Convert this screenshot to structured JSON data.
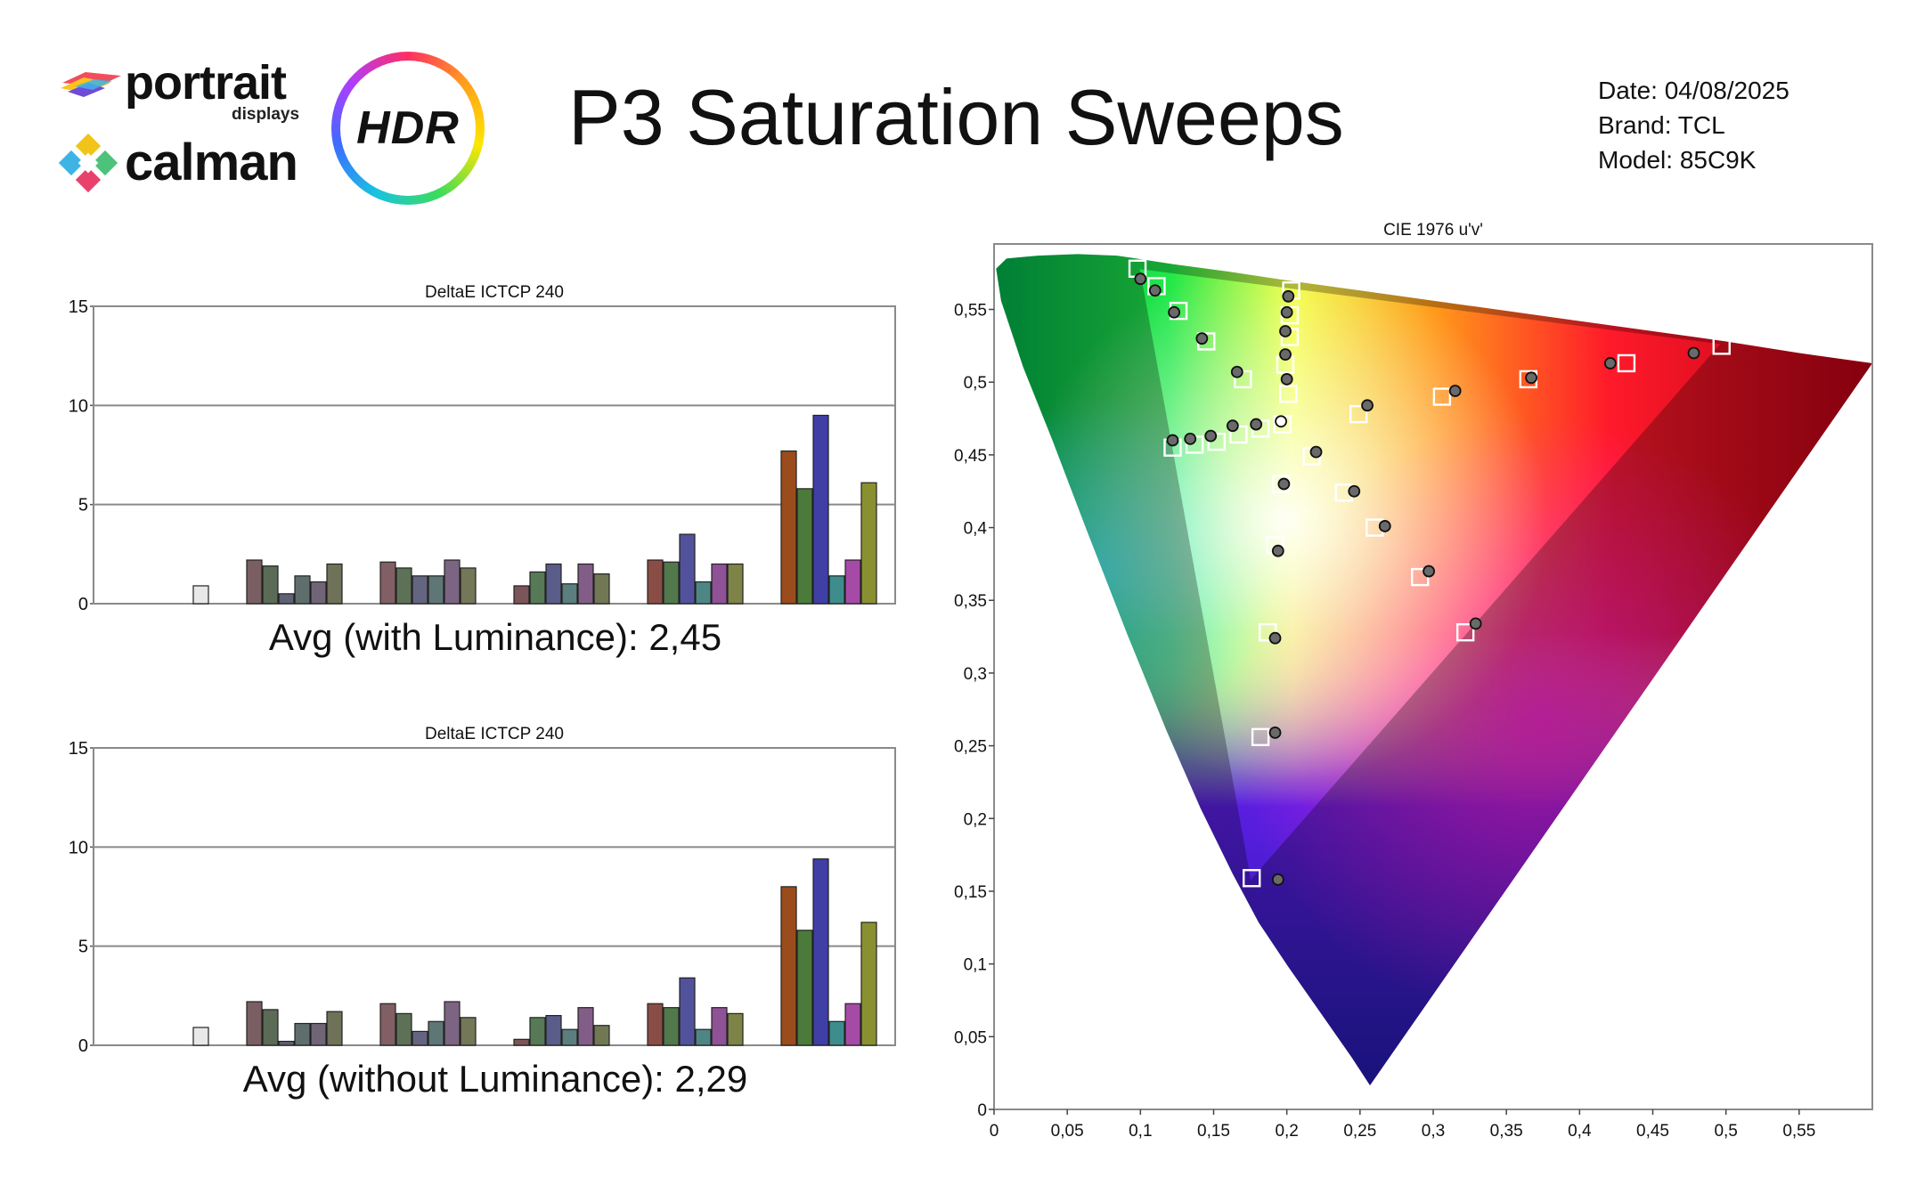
{
  "header": {
    "brand_portrait": "portrait",
    "brand_displays": "displays",
    "brand_calman": "calman",
    "badge_hdr": "HDR",
    "title": "P3 Saturation Sweeps",
    "date": "Date: 04/08/2025",
    "brand": "Brand: TCL",
    "model": "Model: 85C9K"
  },
  "icons": {
    "portrait_logo": "portrait-logo-icon",
    "calman_logo": "calman-logo-icon",
    "hdr_badge": "hdr-ring-icon"
  },
  "chart_data": [
    {
      "type": "bar",
      "title": "DeltaE ICTCP 240",
      "ylim": [
        0,
        15
      ],
      "yticks": [
        "0",
        "5",
        "10",
        "15"
      ],
      "groups": [
        {
          "colors": [
            "#c8c8c8",
            "#c8c8c8",
            "#c8c8c8",
            "#c8c8c8",
            "#c8c8c8",
            "#e8e8e8"
          ],
          "values": [
            0,
            0,
            0,
            0,
            0,
            0.9
          ]
        },
        {
          "colors": [
            "#7a5f62",
            "#5b6b56",
            "#5e6174",
            "#5f6d6d",
            "#706577",
            "#6f7259"
          ],
          "values": [
            2.2,
            1.9,
            0.5,
            1.4,
            1.1,
            2.0
          ]
        },
        {
          "colors": [
            "#815f64",
            "#5d7157",
            "#646580",
            "#5e7676",
            "#7b6582",
            "#747758"
          ],
          "values": [
            2.1,
            1.8,
            1.4,
            1.4,
            2.2,
            1.8
          ]
        },
        {
          "colors": [
            "#7b5558",
            "#577955",
            "#5a5d89",
            "#5b7e7e",
            "#825d87",
            "#737854"
          ],
          "values": [
            0.9,
            1.6,
            2.0,
            1.0,
            2.0,
            1.5
          ]
        },
        {
          "colors": [
            "#8a4d45",
            "#51794c",
            "#52529c",
            "#4e8686",
            "#8f5296",
            "#7e8347"
          ],
          "values": [
            2.2,
            2.1,
            3.5,
            1.1,
            2.0,
            2.0
          ]
        },
        {
          "colors": [
            "#9a4c1c",
            "#4b7a3a",
            "#3f3fa6",
            "#3e8d8d",
            "#a64aa8",
            "#8a9030"
          ],
          "values": [
            7.7,
            5.8,
            9.5,
            1.4,
            2.2,
            6.1
          ]
        }
      ],
      "avg_label": "Avg (with Luminance): 2,45"
    },
    {
      "type": "bar",
      "title": "DeltaE ICTCP 240",
      "ylim": [
        0,
        15
      ],
      "yticks": [
        "0",
        "5",
        "10",
        "15"
      ],
      "groups": [
        {
          "colors": [
            "#c8c8c8",
            "#c8c8c8",
            "#c8c8c8",
            "#c8c8c8",
            "#c8c8c8",
            "#e8e8e8"
          ],
          "values": [
            0,
            0,
            0,
            0,
            0,
            0.9
          ]
        },
        {
          "colors": [
            "#7a5f62",
            "#5b6b56",
            "#5e6174",
            "#5f6d6d",
            "#706577",
            "#6f7259"
          ],
          "values": [
            2.2,
            1.8,
            0.2,
            1.1,
            1.1,
            1.7
          ]
        },
        {
          "colors": [
            "#815f64",
            "#5d7157",
            "#646580",
            "#5e7676",
            "#7b6582",
            "#747758"
          ],
          "values": [
            2.1,
            1.6,
            0.7,
            1.2,
            2.2,
            1.4
          ]
        },
        {
          "colors": [
            "#7b5558",
            "#577955",
            "#5a5d89",
            "#5b7e7e",
            "#825d87",
            "#737854"
          ],
          "values": [
            0.3,
            1.4,
            1.5,
            0.8,
            1.9,
            1.0
          ]
        },
        {
          "colors": [
            "#8a4d45",
            "#51794c",
            "#52529c",
            "#4e8686",
            "#8f5296",
            "#7e8347"
          ],
          "values": [
            2.1,
            1.9,
            3.4,
            0.8,
            1.9,
            1.6
          ]
        },
        {
          "colors": [
            "#9a4c1c",
            "#4b7a3a",
            "#3f3fa6",
            "#3e8d8d",
            "#a64aa8",
            "#8a9030"
          ],
          "values": [
            8.0,
            5.8,
            9.4,
            1.2,
            2.1,
            6.2
          ]
        }
      ],
      "avg_label": "Avg (without Luminance): 2,29"
    },
    {
      "type": "scatter",
      "title": "CIE 1976 u'v'",
      "xlim": [
        0,
        0.6
      ],
      "ylim": [
        0,
        0.595
      ],
      "xticks": [
        0,
        0.05,
        0.1,
        0.15,
        0.2,
        0.25,
        0.3,
        0.35,
        0.4,
        0.45,
        0.5,
        0.55
      ],
      "yticks": [
        0,
        0.05,
        0.1,
        0.15,
        0.2,
        0.25,
        0.3,
        0.35,
        0.4,
        0.45,
        0.5,
        0.55
      ],
      "xtick_labels": [
        "0",
        "0,05",
        "0,1",
        "0,15",
        "0,2",
        "0,25",
        "0,3",
        "0,35",
        "0,4",
        "0,45",
        "0,5",
        "0,55"
      ],
      "ytick_labels": [
        "0",
        "0,05",
        "0,1",
        "0,15",
        "0,2",
        "0,25",
        "0,3",
        "0,35",
        "0,4",
        "0,45",
        "0,5",
        "0,55"
      ],
      "series": [
        {
          "marker": "square",
          "points": [
            [
              0.098,
              0.578
            ],
            [
              0.111,
              0.566
            ],
            [
              0.126,
              0.549
            ],
            [
              0.145,
              0.528
            ],
            [
              0.17,
              0.502
            ],
            [
              0.201,
              0.492
            ],
            [
              0.203,
              0.563
            ],
            [
              0.202,
              0.546
            ],
            [
              0.202,
              0.531
            ],
            [
              0.199,
              0.512
            ],
            [
              0.122,
              0.455
            ],
            [
              0.137,
              0.457
            ],
            [
              0.152,
              0.459
            ],
            [
              0.167,
              0.464
            ],
            [
              0.182,
              0.468
            ],
            [
              0.197,
              0.471
            ],
            [
              0.217,
              0.449
            ],
            [
              0.249,
              0.478
            ],
            [
              0.306,
              0.49
            ],
            [
              0.365,
              0.502
            ],
            [
              0.432,
              0.513
            ],
            [
              0.497,
              0.525
            ],
            [
              0.196,
              0.43
            ],
            [
              0.239,
              0.424
            ],
            [
              0.26,
              0.4
            ],
            [
              0.291,
              0.366
            ],
            [
              0.322,
              0.328
            ],
            [
              0.192,
              0.388
            ],
            [
              0.187,
              0.328
            ],
            [
              0.182,
              0.256
            ],
            [
              0.176,
              0.159
            ]
          ]
        },
        {
          "marker": "circle",
          "points": [
            [
              0.1,
              0.571
            ],
            [
              0.11,
              0.563
            ],
            [
              0.123,
              0.548
            ],
            [
              0.142,
              0.53
            ],
            [
              0.166,
              0.507
            ],
            [
              0.201,
              0.559
            ],
            [
              0.2,
              0.548
            ],
            [
              0.199,
              0.535
            ],
            [
              0.199,
              0.519
            ],
            [
              0.2,
              0.502
            ],
            [
              0.122,
              0.46
            ],
            [
              0.134,
              0.461
            ],
            [
              0.148,
              0.463
            ],
            [
              0.163,
              0.47
            ],
            [
              0.179,
              0.471
            ],
            [
              0.22,
              0.452
            ],
            [
              0.255,
              0.484
            ],
            [
              0.315,
              0.494
            ],
            [
              0.367,
              0.503
            ],
            [
              0.421,
              0.513
            ],
            [
              0.478,
              0.52
            ],
            [
              0.198,
              0.43
            ],
            [
              0.246,
              0.425
            ],
            [
              0.267,
              0.401
            ],
            [
              0.297,
              0.37
            ],
            [
              0.329,
              0.334
            ],
            [
              0.194,
              0.384
            ],
            [
              0.192,
              0.324
            ],
            [
              0.192,
              0.259
            ],
            [
              0.194,
              0.158
            ]
          ],
          "open_points": [
            [
              0.196,
              0.473
            ]
          ]
        }
      ]
    }
  ]
}
